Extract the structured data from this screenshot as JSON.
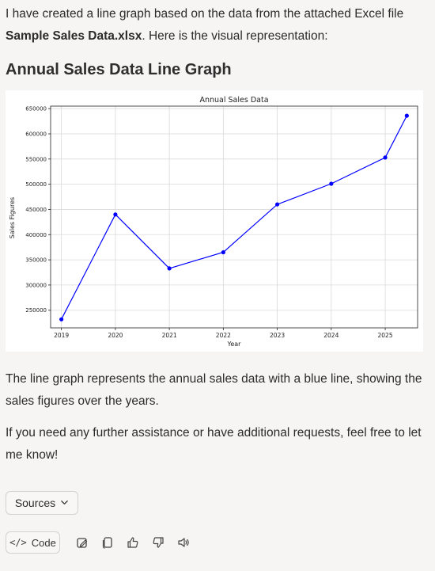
{
  "message": {
    "intro_pre": "I have created a line graph based on the data from the attached Excel file ",
    "intro_file": "Sample Sales Data.xlsx",
    "intro_post": ". Here is the visual representation:",
    "heading": "Annual Sales Data Line Graph",
    "paragraph1": "The line graph represents the annual sales data with a blue line, showing the sales figures over the years.",
    "paragraph2": "If you need any further assistance or have additional requests, feel free to let me know!"
  },
  "sources": {
    "label": "Sources",
    "icon": "chevron-down-icon"
  },
  "toolbar": {
    "code_label": "Code",
    "code_icon": "code-icon",
    "icons": [
      "edit-document-icon",
      "copy-icon",
      "thumbs-up-icon",
      "thumbs-down-icon",
      "speaker-icon"
    ]
  },
  "chart_data": {
    "type": "line",
    "title": "Annual Sales Data",
    "xlabel": "Year",
    "ylabel": "Sales Figures",
    "x_ticks": [
      "2019",
      "2020",
      "2021",
      "2022",
      "2023",
      "2024",
      "2025"
    ],
    "y_ticks": [
      250000,
      300000,
      350000,
      400000,
      450000,
      500000,
      550000,
      600000,
      650000
    ],
    "ylim": [
      215000,
      655000
    ],
    "xlim": [
      2018.8,
      2025.6
    ],
    "grid": true,
    "line_color": "#0000ff",
    "points": [
      {
        "x": 2019.0,
        "y": 232000
      },
      {
        "x": 2020.0,
        "y": 440000
      },
      {
        "x": 2021.0,
        "y": 333000
      },
      {
        "x": 2022.0,
        "y": 365000
      },
      {
        "x": 2023.0,
        "y": 460000
      },
      {
        "x": 2024.0,
        "y": 501000
      },
      {
        "x": 2025.0,
        "y": 553000
      },
      {
        "x": 2025.4,
        "y": 636000
      }
    ]
  }
}
